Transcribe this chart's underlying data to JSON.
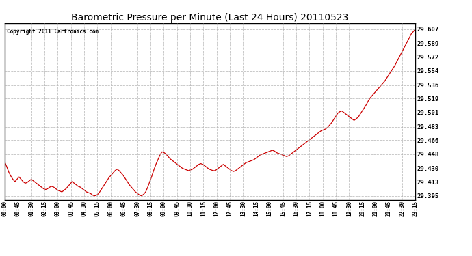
{
  "title": "Barometric Pressure per Minute (Last 24 Hours) 20110523",
  "copyright": "Copyright 2011 Cartronics.com",
  "line_color": "#cc0000",
  "background_color": "#ffffff",
  "grid_color": "#b0b0b0",
  "title_color": "#000000",
  "y_tick_values": [
    29.395,
    29.413,
    29.43,
    29.448,
    29.466,
    29.483,
    29.501,
    29.519,
    29.536,
    29.554,
    29.572,
    29.589,
    29.607
  ],
  "y_min": 29.39,
  "y_max": 29.615,
  "x_tick_labels": [
    "00:00",
    "00:45",
    "01:30",
    "02:15",
    "03:00",
    "03:45",
    "04:30",
    "05:15",
    "06:00",
    "06:45",
    "07:30",
    "08:15",
    "09:00",
    "09:45",
    "10:30",
    "11:15",
    "12:00",
    "12:45",
    "13:30",
    "14:15",
    "15:00",
    "15:45",
    "16:30",
    "17:15",
    "18:00",
    "18:45",
    "19:30",
    "20:15",
    "21:00",
    "21:45",
    "22:30",
    "23:15"
  ],
  "pressure_data": [
    29.438,
    29.432,
    29.425,
    29.42,
    29.416,
    29.413,
    29.416,
    29.419,
    29.416,
    29.413,
    29.411,
    29.412,
    29.414,
    29.416,
    29.414,
    29.412,
    29.41,
    29.408,
    29.406,
    29.404,
    29.403,
    29.404,
    29.406,
    29.407,
    29.406,
    29.404,
    29.402,
    29.401,
    29.4,
    29.402,
    29.404,
    29.407,
    29.41,
    29.413,
    29.411,
    29.409,
    29.407,
    29.406,
    29.404,
    29.402,
    29.4,
    29.399,
    29.398,
    29.396,
    29.395,
    29.396,
    29.398,
    29.402,
    29.406,
    29.41,
    29.414,
    29.418,
    29.421,
    29.424,
    29.427,
    29.429,
    29.427,
    29.424,
    29.421,
    29.417,
    29.413,
    29.409,
    29.406,
    29.403,
    29.4,
    29.398,
    29.396,
    29.395,
    29.397,
    29.4,
    29.406,
    29.413,
    29.42,
    29.428,
    29.435,
    29.441,
    29.447,
    29.451,
    29.45,
    29.448,
    29.445,
    29.442,
    29.44,
    29.438,
    29.436,
    29.434,
    29.432,
    29.43,
    29.429,
    29.428,
    29.427,
    29.428,
    29.429,
    29.431,
    29.433,
    29.435,
    29.436,
    29.435,
    29.433,
    29.431,
    29.429,
    29.428,
    29.427,
    29.427,
    29.429,
    29.431,
    29.433,
    29.435,
    29.433,
    29.431,
    29.429,
    29.427,
    29.426,
    29.427,
    29.429,
    29.431,
    29.433,
    29.435,
    29.437,
    29.438,
    29.439,
    29.44,
    29.441,
    29.443,
    29.445,
    29.447,
    29.448,
    29.449,
    29.45,
    29.451,
    29.452,
    29.453,
    29.452,
    29.45,
    29.449,
    29.448,
    29.447,
    29.446,
    29.445,
    29.446,
    29.448,
    29.45,
    29.452,
    29.454,
    29.456,
    29.458,
    29.46,
    29.462,
    29.464,
    29.466,
    29.468,
    29.47,
    29.472,
    29.474,
    29.476,
    29.478,
    29.479,
    29.48,
    29.482,
    29.485,
    29.488,
    29.492,
    29.496,
    29.5,
    29.502,
    29.503,
    29.501,
    29.499,
    29.497,
    29.495,
    29.493,
    29.491,
    29.493,
    29.495,
    29.499,
    29.503,
    29.507,
    29.511,
    29.516,
    29.52,
    29.523,
    29.526,
    29.529,
    29.532,
    29.535,
    29.538,
    29.541,
    29.545,
    29.549,
    29.553,
    29.557,
    29.561,
    29.566,
    29.571,
    29.576,
    29.581,
    29.586,
    29.591,
    29.596,
    29.601,
    29.604,
    29.607
  ]
}
